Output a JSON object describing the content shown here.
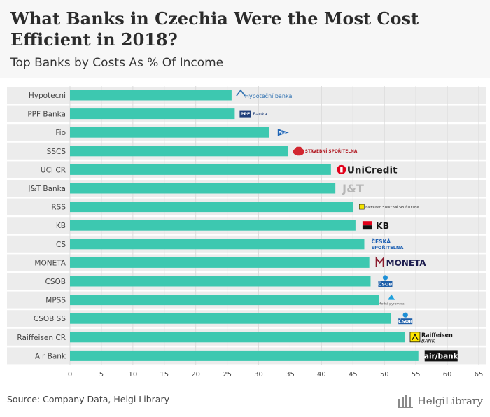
{
  "header": {
    "title": "What Banks in Czechia Were the Most Cost Efficient in 2018?",
    "subtitle": "Top Banks by Costs As % Of Income"
  },
  "footer": {
    "source": "Source: Company Data, Helgi Library",
    "brand": "HelgiLibrary"
  },
  "colors": {
    "bar": "#3dc8b0",
    "band": "#ececec",
    "grid": "#dcdcdc"
  },
  "chart_data": {
    "type": "bar",
    "orientation": "horizontal",
    "title": "What Banks in Czechia Were the Most Cost Efficient in 2018?",
    "subtitle": "Top Banks by Costs As % Of Income",
    "xlabel": "",
    "ylabel": "",
    "xlim": [
      0,
      65
    ],
    "xticks": [
      0,
      5,
      10,
      15,
      20,
      25,
      30,
      35,
      40,
      45,
      50,
      55,
      60,
      65
    ],
    "grid": true,
    "categories": [
      "Hypotecni",
      "PPF Banka",
      "Fio",
      "SSCS",
      "UCI CR",
      "J&T Banka",
      "RSS",
      "KB",
      "CS",
      "MONETA",
      "CSOB",
      "MPSS",
      "CSOB SS",
      "Raiffeisen CR",
      "Air Bank"
    ],
    "values": [
      25.7,
      26.2,
      31.7,
      34.7,
      41.5,
      42.2,
      45.0,
      45.4,
      46.8,
      47.6,
      47.8,
      49.1,
      51.0,
      53.2,
      55.4
    ],
    "logos": [
      {
        "name": "hypotecni-logo",
        "text": "Hypoteční banka"
      },
      {
        "name": "ppf-logo",
        "text": "PPF Banka"
      },
      {
        "name": "fio-logo",
        "text": "Fio"
      },
      {
        "name": "sscs-logo",
        "text": "STAVEBNÍ SPOŘITELNA"
      },
      {
        "name": "unicredit-logo",
        "text": "UniCredit"
      },
      {
        "name": "jt-logo",
        "text": "J&T"
      },
      {
        "name": "rss-logo",
        "text": "Raiffeisen STAVEBNÍ SPOŘITELNA"
      },
      {
        "name": "kb-logo",
        "text": "KB"
      },
      {
        "name": "cs-logo",
        "text": "ČESKÁ SPOŘITELNA"
      },
      {
        "name": "moneta-logo",
        "text": "MONETA"
      },
      {
        "name": "csob-logo",
        "text": "ČSOB"
      },
      {
        "name": "mpss-logo",
        "text": "Modrá pyramida"
      },
      {
        "name": "csobss-logo",
        "text": "ČSOB"
      },
      {
        "name": "raiffeisen-logo",
        "text": "Raiffeisen BANK"
      },
      {
        "name": "airbank-logo",
        "text": "air/bank"
      }
    ]
  }
}
